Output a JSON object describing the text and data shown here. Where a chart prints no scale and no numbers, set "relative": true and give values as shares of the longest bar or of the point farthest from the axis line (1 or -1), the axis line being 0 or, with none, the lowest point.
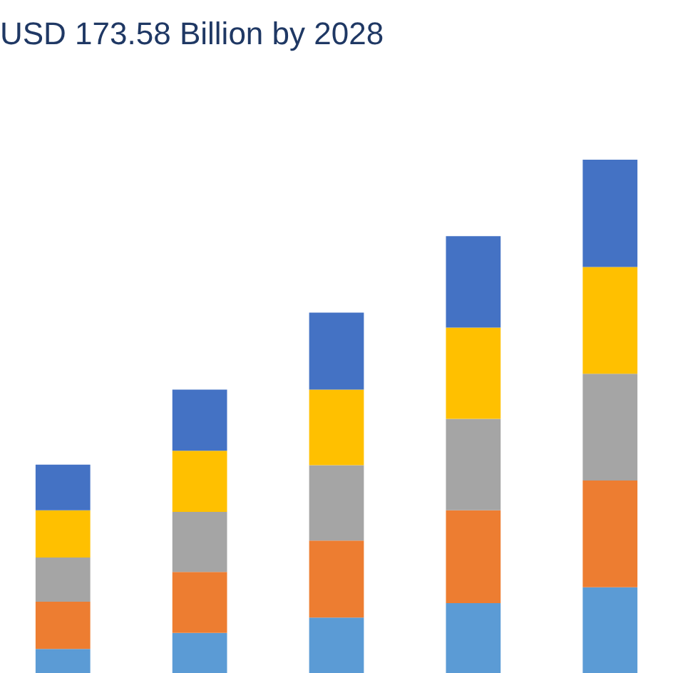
{
  "chart_data": {
    "type": "bar",
    "title": "USD 173.58 Billion by 2028",
    "relative": true,
    "stacked": true,
    "categories": [
      null,
      null,
      null,
      null,
      null
    ],
    "series": [
      {
        "color": "#5b9bd5",
        "values": [
          0.047,
          0.078,
          0.108,
          0.136,
          0.167
        ]
      },
      {
        "color": "#ed7d31",
        "values": [
          0.092,
          0.119,
          0.15,
          0.181,
          0.208
        ]
      },
      {
        "color": "#a5a5a5",
        "values": [
          0.086,
          0.117,
          0.147,
          0.178,
          0.208
        ]
      },
      {
        "color": "#ffc000",
        "values": [
          0.092,
          0.119,
          0.147,
          0.178,
          0.208
        ]
      },
      {
        "color": "#4472c4",
        "values": [
          0.089,
          0.119,
          0.15,
          0.178,
          0.209
        ]
      }
    ]
  }
}
